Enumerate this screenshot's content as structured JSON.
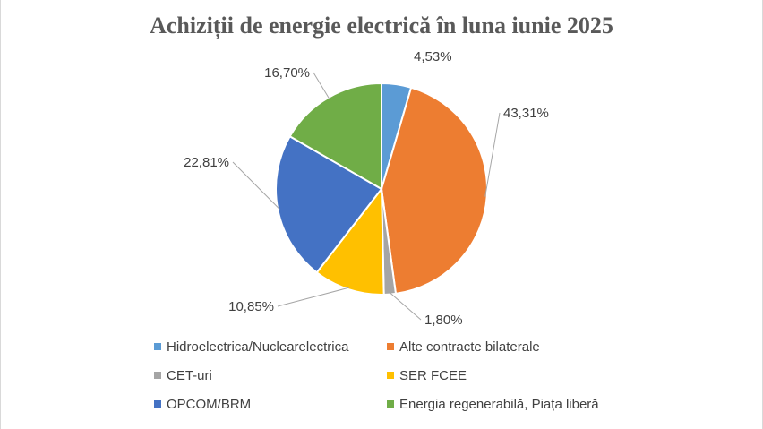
{
  "chart_data": {
    "type": "pie",
    "title": "Achiziții de energie electrică în luna iunie 2025",
    "legend_position": "bottom",
    "slices": [
      {
        "name": "Hidroelectrica/Nuclearelectrica",
        "value": 4.53,
        "label": "4,53%",
        "color": "#5b9bd5"
      },
      {
        "name": "Alte contracte bilaterale",
        "value": 43.31,
        "label": "43,31%",
        "color": "#ed7d31"
      },
      {
        "name": "CET-uri",
        "value": 1.8,
        "label": "1,80%",
        "color": "#a5a5a5"
      },
      {
        "name": "SER FCEE",
        "value": 10.85,
        "label": "10,85%",
        "color": "#ffc000"
      },
      {
        "name": "OPCOM/BRM",
        "value": 22.81,
        "label": "22,81%",
        "color": "#4472c4"
      },
      {
        "name": "Energia regenerabilă, Piața liberă",
        "value": 16.7,
        "label": "16,70%",
        "color": "#70ad47"
      }
    ]
  }
}
